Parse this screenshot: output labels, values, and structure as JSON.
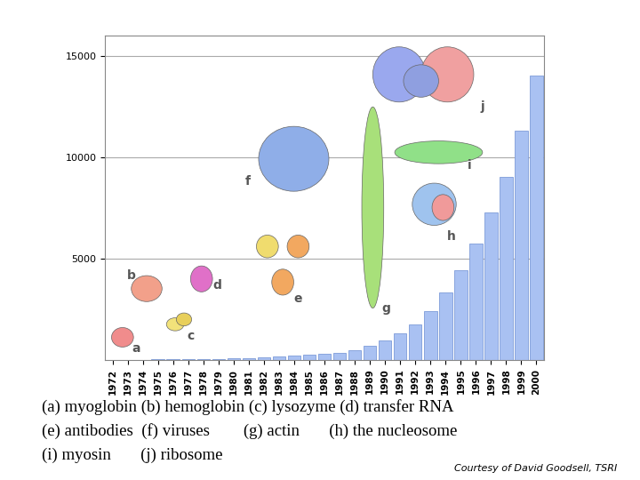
{
  "chart_data": {
    "type": "bar",
    "categories": [
      "1972",
      "1973",
      "1974",
      "1975",
      "1976",
      "1977",
      "1978",
      "1979",
      "1980",
      "1981",
      "1982",
      "1983",
      "1984",
      "1985",
      "1986",
      "1987",
      "1988",
      "1989",
      "1990",
      "1991",
      "1992",
      "1993",
      "1994",
      "1995",
      "1996",
      "1997",
      "1998",
      "1999",
      "2000"
    ],
    "values": [
      5,
      10,
      15,
      25,
      30,
      40,
      50,
      60,
      80,
      100,
      130,
      160,
      200,
      250,
      300,
      350,
      490,
      710,
      970,
      1330,
      1770,
      2430,
      3320,
      4425,
      5752,
      7257,
      9027,
      11330,
      14027
    ],
    "color": "#a9c1f2",
    "ylim": [
      0,
      16000
    ],
    "yticks": [
      5000,
      10000,
      15000
    ],
    "grid": true,
    "annotations": [
      "a",
      "b",
      "c",
      "d",
      "e",
      "f",
      "g",
      "h",
      "i",
      "j"
    ],
    "caption": [
      "(a) myoglobin (b) hemoglobin (c) lysozyme (d) transfer RNA",
      "(e) antibodies  (f) viruses        (g) actin       (h) the nucleosome",
      "(i) myosin       (j) ribosome"
    ],
    "credit": "Courtesy of David Goodsell, TSRI"
  }
}
